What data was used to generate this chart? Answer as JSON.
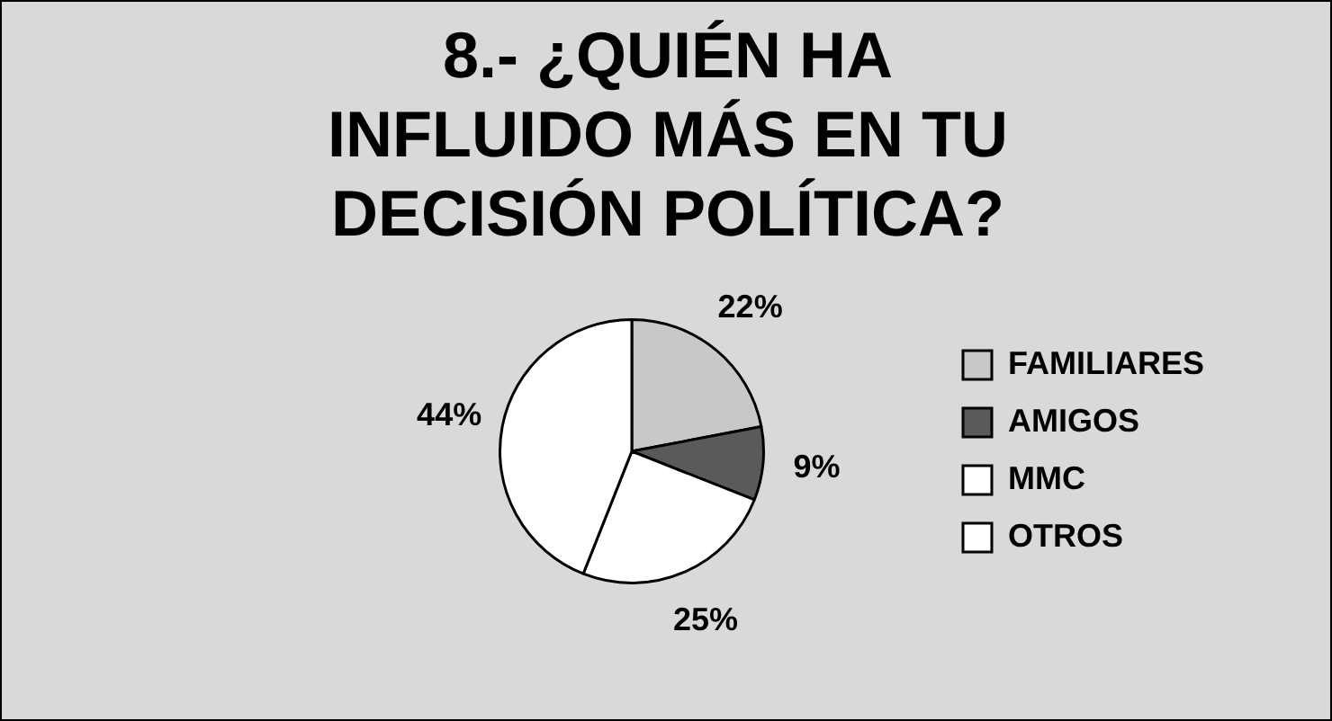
{
  "chart_data": {
    "type": "pie",
    "title": "8.- ¿QUIÉN HA INFLUIDO MÁS EN TU DECISIÓN POLÍTICA?",
    "categories": [
      "FAMILIARES",
      "AMIGOS",
      "MMC",
      "OTROS"
    ],
    "values": [
      22,
      9,
      25,
      44
    ],
    "value_labels": [
      "22%",
      "9%",
      "25%",
      "44%"
    ],
    "colors": [
      "#c8c8c8",
      "#5a5a5a",
      "#ffffff",
      "#ffffff"
    ],
    "legend": "right"
  }
}
